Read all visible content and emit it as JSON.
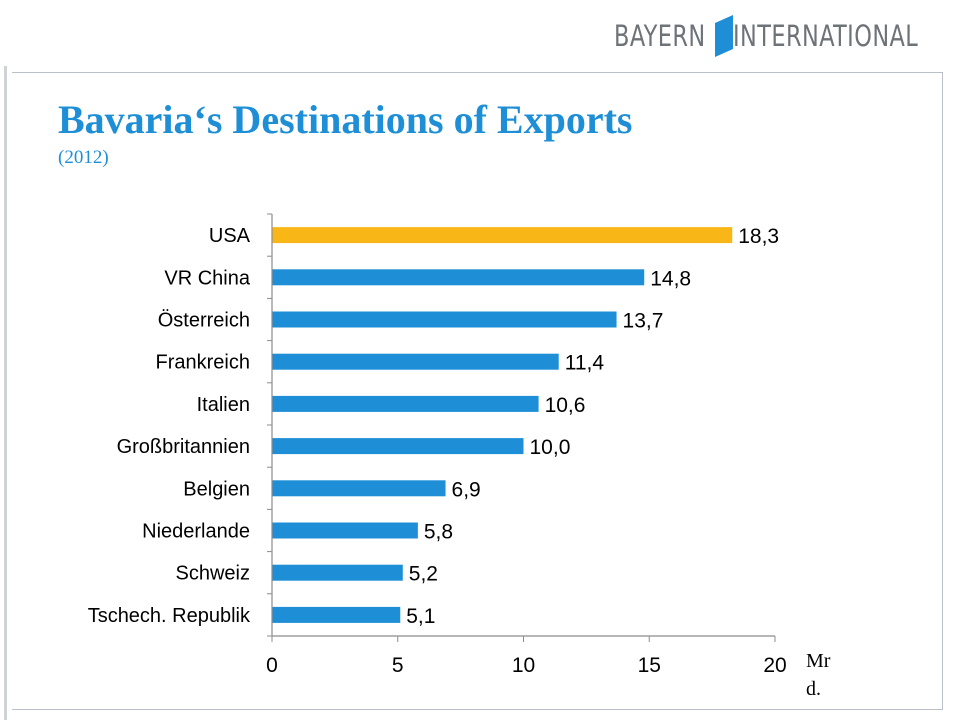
{
  "brand": {
    "word1": "BAYERN",
    "word2": "INTERNATIONAL",
    "colors": {
      "text": "#6e7378",
      "flag": "#1e8fd6"
    }
  },
  "title": "Bavaria‘s Destinations of Exports",
  "subtitle": "(2012)",
  "unit_label": "Mrd.",
  "chart_data": {
    "type": "bar",
    "orientation": "horizontal",
    "categories": [
      "USA",
      "VR China",
      "Österreich",
      "Frankreich",
      "Italien",
      "Großbritannien",
      "Belgien",
      "Niederlande",
      "Schweiz",
      "Tschech. Republik"
    ],
    "values": [
      18.3,
      14.8,
      13.7,
      11.4,
      10.6,
      10.0,
      6.9,
      5.8,
      5.2,
      5.1
    ],
    "value_labels": [
      "18,3",
      "14,8",
      "13,7",
      "11,4",
      "10,6",
      "10,0",
      "6,9",
      "5,8",
      "5,2",
      "5,1"
    ],
    "xlim": [
      0,
      20
    ],
    "xticks": [
      0,
      5,
      10,
      15,
      20
    ],
    "grid": false,
    "legend": "none",
    "colors": {
      "highlight": "#f9b717",
      "default": "#1e8fd6",
      "highlight_category": "USA"
    }
  }
}
